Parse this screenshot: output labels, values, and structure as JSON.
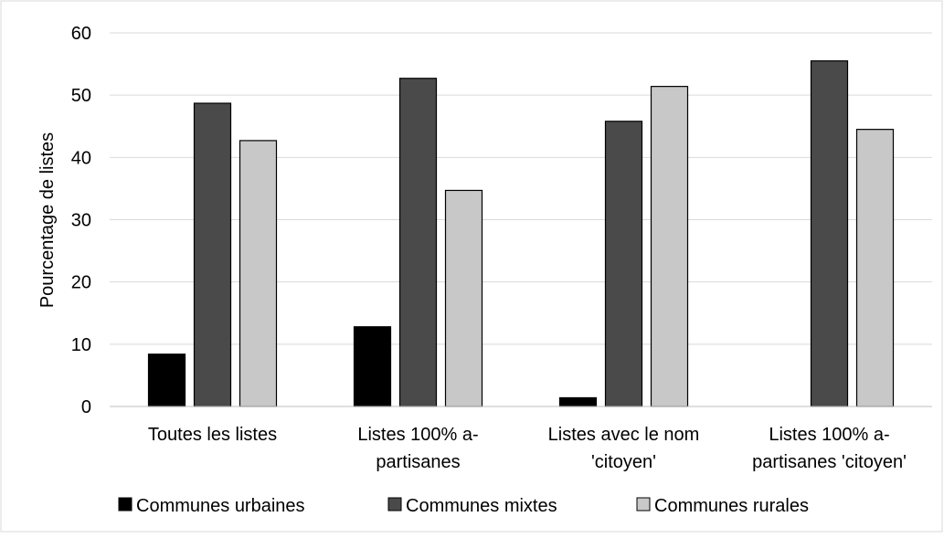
{
  "chart_data": {
    "type": "bar",
    "title": "",
    "xlabel": "",
    "ylabel": "Pourcentage de listes",
    "ylim": [
      0,
      60
    ],
    "yticks": [
      0,
      10,
      20,
      30,
      40,
      50,
      60
    ],
    "grid": true,
    "legend_position": "bottom",
    "categories": [
      [
        "Toutes les listes"
      ],
      [
        "Listes 100% a-",
        "partisanes"
      ],
      [
        "Listes avec le nom",
        "'citoyen'"
      ],
      [
        "Listes 100% a-",
        "partisanes 'citoyen'"
      ]
    ],
    "series": [
      {
        "name": "Communes urbaines",
        "color": "#000000",
        "values": [
          8.4,
          12.8,
          1.4,
          0
        ]
      },
      {
        "name": "Communes mixtes",
        "color": "#4a4a4a",
        "values": [
          48.7,
          52.7,
          45.8,
          55.5
        ]
      },
      {
        "name": "Communes rurales",
        "color": "#c8c8c8",
        "values": [
          42.7,
          34.7,
          51.4,
          44.5
        ]
      }
    ]
  }
}
